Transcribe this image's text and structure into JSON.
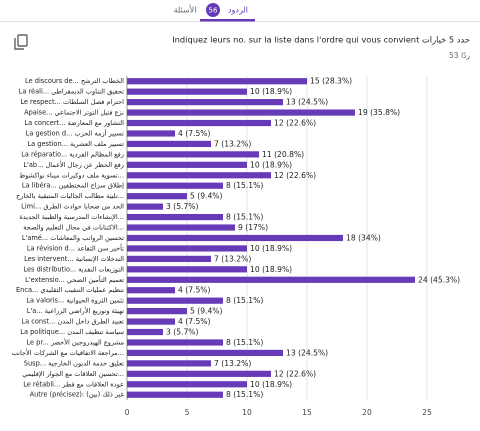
{
  "header": {
    "tabs": [
      {
        "label": "الأسئلة"
      },
      {
        "label": "الردود",
        "count": 56
      }
    ]
  },
  "question": {
    "title": "Indiquez leurs no. sur la liste dans l'ordre qui vous convient  حدد 5 خيارات",
    "responses": "53 ردًا"
  },
  "chart_data": {
    "type": "bar",
    "orientation": "horizontal",
    "color": "#673ab7",
    "grid": true,
    "categories": [
      "Le discours de... الخطاب الترشح",
      "La réali... تحقيق التناوب الديمقراطي",
      "Le respect... احترام فصل السلطات",
      "Apaise... نزع فتيل التوتر الاجتماعي",
      "La concert... التشاور مع المعارضة",
      "La gestion d... تسيير أزمة الحزب",
      "La gestion... تسيير ملف العشرية",
      "La réparatio... رفع المظالم الفردية",
      "L'ab... رفع الحظر عن رجال الأعمال",
      "تسوية ملف دوكيرات ميناء نواكشوط...",
      "La libéra... إطلاق سراح المختطفين",
      "تلبية مطالب الجاليات المتبقية بالخارج...",
      "Limi... الحد من ضحايا حوادث الطرق",
      "الإنشاءات المدرسية والطبية الجديدة...",
      "الاكتتابات في مجال التعليم والصحة...",
      "L'amé... تحسين الرواتب والمعاشات",
      "La révision d... تأخير سن التقاعد",
      "Les intervent... التدخلات الإنسانية",
      "Les distributio... التوزيعات النقدية",
      "L'extensio... تعميم التأمين الصحي",
      "Enca... تنظيم عمليات التنقيب التقليدي",
      "La valoris... تثمين الثروة الحيوانية",
      "L'a... تهيئة وتوزيع الأراضي الزراعية",
      "La const... تعبيد الطرق داخل المدن",
      "La politique... سياسة تنظيف المدن",
      "Le pr... مشروع الهيدروجين الأخضر",
      "مراجعة الاتفاقيات مع الشركات الأجانب...",
      "Susp... تعليق خدمة الديون الخارجية",
      "تحسين العلاقات مع الجوار الإقليمي...",
      "Le rétabli... عودة العلاقات مع قطر",
      "Autre (précisez): (غير ذلك (بين"
    ],
    "values": [
      15,
      10,
      13,
      19,
      12,
      4,
      7,
      11,
      10,
      12,
      8,
      5,
      3,
      8,
      9,
      18,
      10,
      7,
      10,
      24,
      4,
      8,
      5,
      4,
      3,
      8,
      13,
      7,
      12,
      10,
      8
    ],
    "value_labels": [
      "15 (28.3%)",
      "10 (18.9%)",
      "13 (24.5%)",
      "19 (35.8%)",
      "12 (22.6%)",
      "4 (7.5%)",
      "7 (13.2%)",
      "11 (20.8%)",
      "10 (18.9%)",
      "12 (22.6%)",
      "8 (15.1%)",
      "5 (9.4%)",
      "3 (5.7%)",
      "8 (15.1%)",
      "9 (17%)",
      "18 (34%)",
      "10 (18.9%)",
      "7 (13.2%)",
      "10 (18.9%)",
      "24 (45.3%)",
      "4 (7.5%)",
      "8 (15.1%)",
      "5 (9.4%)",
      "4 (7.5%)",
      "3 (5.7%)",
      "8 (15.1%)",
      "13 (24.5%)",
      "7 (13.2%)",
      "12 (22.6%)",
      "10 (18.9%)",
      "8 (15.1%)"
    ],
    "xlim": [
      0,
      25
    ],
    "xticks": [
      0,
      5,
      10,
      15,
      20,
      25
    ]
  }
}
